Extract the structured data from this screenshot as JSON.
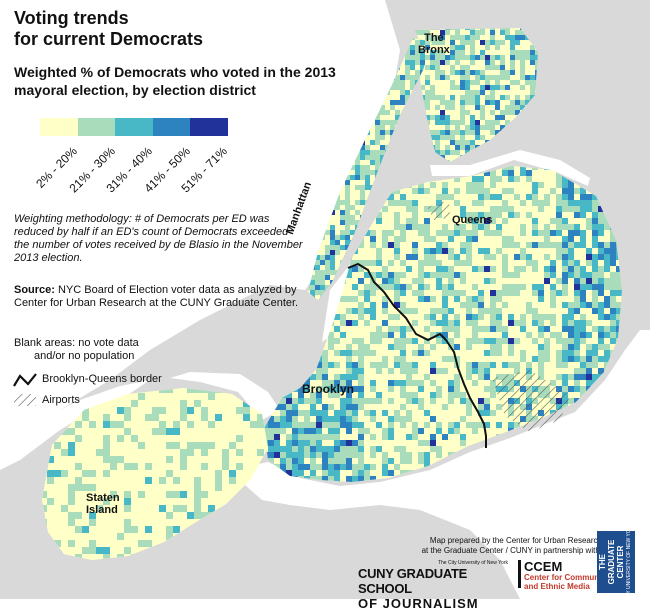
{
  "title": "Voting trends\nfor current Democrats",
  "subtitle": "Weighted % of Democrats who voted in the 2013 mayoral election, by election district",
  "legend": {
    "colors": [
      "#ffffc8",
      "#a8dcbb",
      "#48b8c6",
      "#2d82c0",
      "#21339b"
    ],
    "labels": [
      "2% - 20%",
      "21% - 30%",
      "31% - 40%",
      "41% - 50%",
      "51% - 71%"
    ]
  },
  "notes": {
    "methodology": "Weighting methodology: # of Democrats per ED was reduced by half if an ED's count of Democrats exceeded the number of votes received by de Blasio in the November 2013 election.",
    "source_bold": "Source:",
    "source_text": " NYC Board of Election voter data as analyzed by Center for Urban Research at the CUNY Graduate Center.",
    "blank_line1": "Blank areas: no vote data",
    "blank_line2": "and/or no population"
  },
  "key": {
    "border_label": "Brooklyn-Queens border",
    "airports_label": "Airports"
  },
  "boroughs": {
    "bronx": "The\nBronx",
    "manhattan": "Manhattan",
    "queens": "Queens",
    "brooklyn": "Brooklyn",
    "staten_island": "Staten\nIsland"
  },
  "credit": {
    "line1": "Map prepared by the Center for Urban Research",
    "line2": "at the Graduate Center / CUNY in partnership with:"
  },
  "logos": {
    "cuny_small": "The City University of New York",
    "cuny_line1": "CUNY GRADUATE SCHOOL",
    "cuny_line2": "OF JOURNALISM",
    "ccem_title": "CCEM",
    "ccem_sub1": "Center for Community",
    "ccem_sub2": "and Ethnic Media",
    "gc_line1": "THE",
    "gc_line2": "GRADUATE",
    "gc_line3": "CENTER",
    "gc_small": "CITY UNIVERSITY OF NEW YORK"
  },
  "colors": {
    "land": "#d9d9d9",
    "water": "#ffffff",
    "border": "#111111"
  }
}
